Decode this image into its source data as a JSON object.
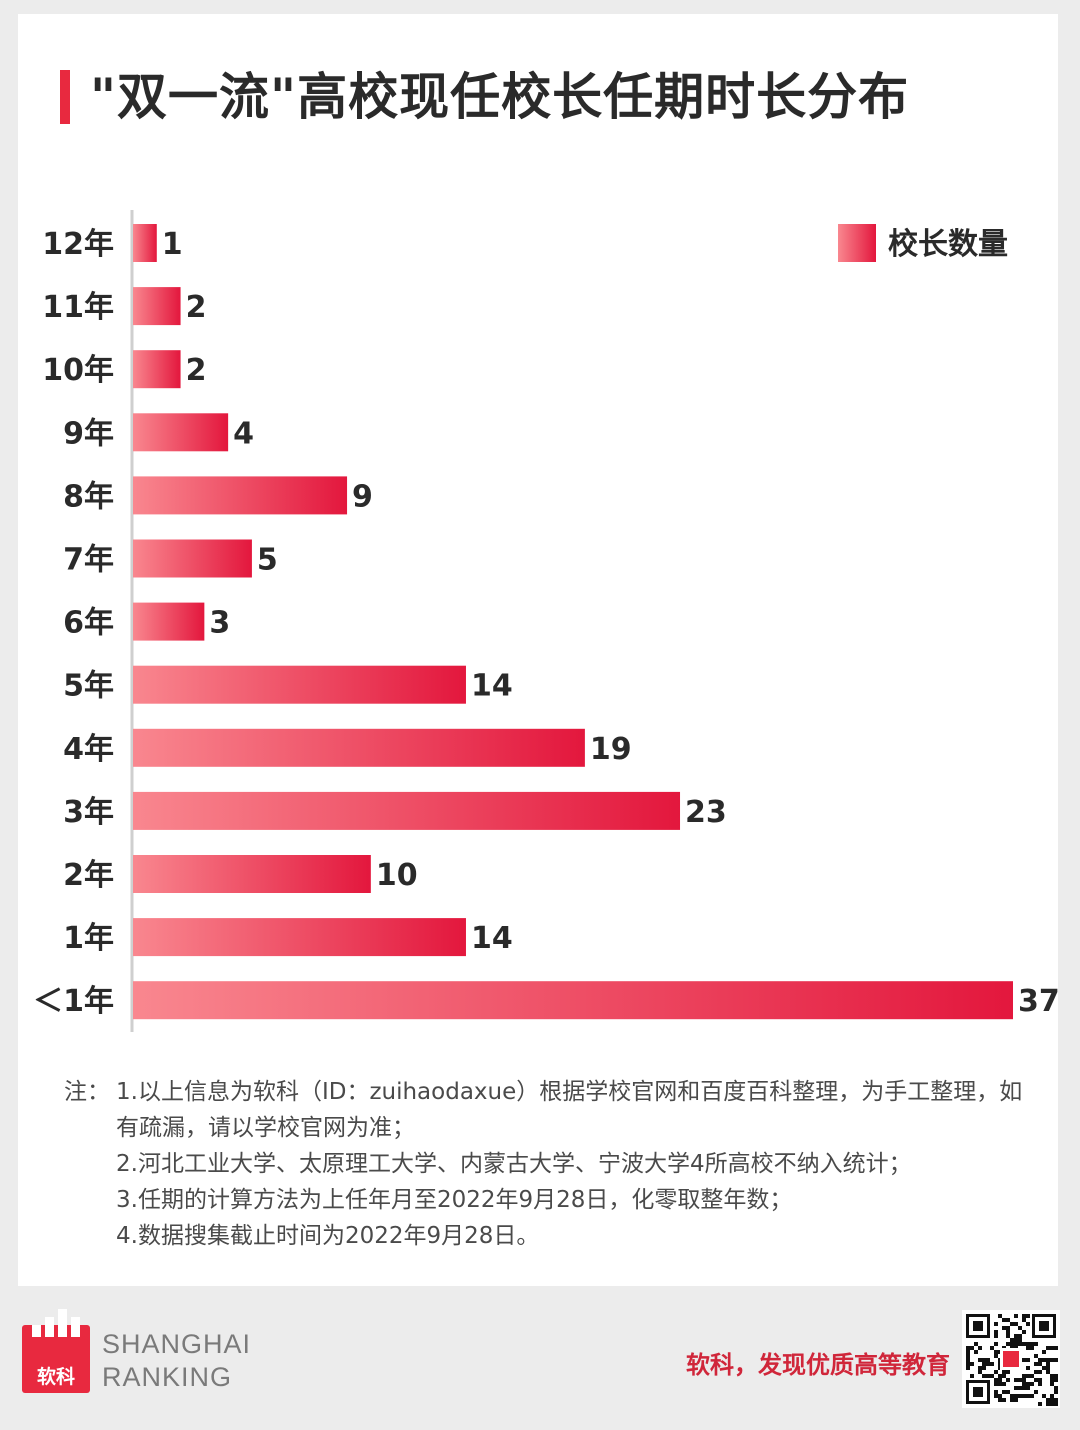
{
  "title": "\"双一流\"高校现任校长任期时长分布",
  "legend_label": "校长数量",
  "colors": {
    "accent": "#e8293f",
    "bar_start": "#f9878f",
    "bar_end": "#e3173d",
    "text": "#2a2a2a"
  },
  "chart_data": {
    "type": "bar",
    "orientation": "horizontal",
    "title": "\"双一流\"高校现任校长任期时长分布",
    "categories": [
      "12年",
      "11年",
      "10年",
      "9年",
      "8年",
      "7年",
      "6年",
      "5年",
      "4年",
      "3年",
      "2年",
      "1年",
      "＜1年"
    ],
    "series": [
      {
        "name": "校长数量",
        "values": [
          1,
          2,
          2,
          4,
          9,
          5,
          3,
          14,
          19,
          23,
          10,
          14,
          37
        ]
      }
    ],
    "xlim": [
      0,
      37
    ],
    "grid": false,
    "legend_position": "top-right",
    "data_labels": true
  },
  "notes": [
    {
      "prefix": "注：",
      "text": "1.以上信息为软科（ID：zuihaodaxue）根据学校官网和百度百科整理，为手工整理，如有疏漏，请以学校官网为准；"
    },
    {
      "prefix": "",
      "text": "2.河北工业大学、太原理工大学、内蒙古大学、宁波大学4所高校不纳入统计；"
    },
    {
      "prefix": "",
      "text": "3.任期的计算方法为上任年月至2022年9月28日，化零取整年数；"
    },
    {
      "prefix": "",
      "text": "4.数据搜集截止时间为2022年9月28日。"
    }
  ],
  "footer": {
    "logo_text": "软科",
    "brand_line1": "SHANGHAI",
    "brand_line2": "RANKING",
    "slogan": "软科，发现优质高等教育",
    "qr_icon": "qr-code-icon"
  }
}
